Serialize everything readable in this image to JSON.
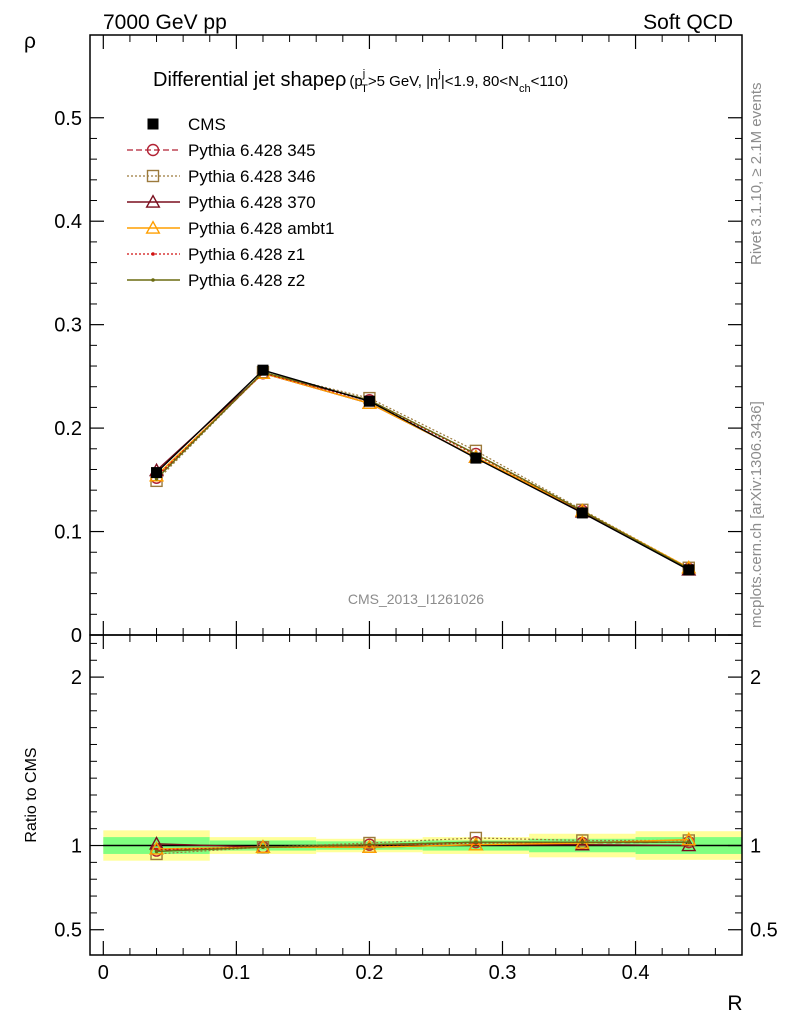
{
  "header": {
    "left": "7000 GeV pp",
    "right": "Soft QCD"
  },
  "side_labels": {
    "rivet": "Rivet 3.1.10, ≥ 2.1M events",
    "mcplots": "mcplots.cern.ch [arXiv:1306.3436]"
  },
  "watermark": "CMS_2013_I1261026",
  "colors": {
    "cms": "#000000",
    "p345": "#b22234",
    "p346": "#9c7a3c",
    "p370": "#7a0f1e",
    "ambt1": "#ff9f00",
    "z1": "#d01010",
    "z2": "#6b6b10",
    "band_inner": "#80ff80",
    "band_outer": "#ffff99"
  },
  "chart_data": [
    {
      "type": "line",
      "title": "Differential jet shape ρ",
      "title_parts": {
        "main": "Differential jet shape",
        "rho": "ρ",
        "open": "(p",
        "pt_sup": "j",
        "pt_sub": "T",
        "cut1": ">5 GeV, |η",
        "eta_sup": "j",
        "cut2": "|<1.9, 80<N",
        "nch_sub": "ch",
        "cut3": "<110)"
      },
      "ylabel": "ρ",
      "xlim": [
        -0.01,
        0.48
      ],
      "ylim": [
        0,
        0.58
      ],
      "yticks": [
        0,
        0.1,
        0.2,
        0.3,
        0.4,
        0.5
      ],
      "ytick_labels": [
        "0",
        "0.1",
        "0.2",
        "0.3",
        "0.4",
        "0.5"
      ],
      "legend_position": "top-left",
      "x": [
        0.04,
        0.12,
        0.2,
        0.28,
        0.36,
        0.44
      ],
      "series": [
        {
          "name": "CMS",
          "key": "cms",
          "values": [
            0.157,
            0.256,
            0.226,
            0.171,
            0.118,
            0.063
          ]
        },
        {
          "name": "Pythia 6.428 345",
          "key": "p345",
          "values": [
            0.152,
            0.253,
            0.227,
            0.175,
            0.12,
            0.064
          ]
        },
        {
          "name": "Pythia 6.428 346",
          "key": "p346",
          "values": [
            0.149,
            0.254,
            0.229,
            0.178,
            0.121,
            0.065
          ]
        },
        {
          "name": "Pythia 6.428 370",
          "key": "p370",
          "values": [
            0.159,
            0.253,
            0.224,
            0.172,
            0.119,
            0.063
          ]
        },
        {
          "name": "Pythia 6.428 ambt1",
          "key": "ambt1",
          "values": [
            0.154,
            0.253,
            0.224,
            0.172,
            0.12,
            0.065
          ]
        },
        {
          "name": "Pythia 6.428 z1",
          "key": "z1",
          "values": [
            0.153,
            0.253,
            0.226,
            0.174,
            0.12,
            0.064
          ]
        },
        {
          "name": "Pythia 6.428 z2",
          "key": "z2",
          "values": [
            0.151,
            0.254,
            0.227,
            0.175,
            0.12,
            0.064
          ]
        }
      ]
    },
    {
      "type": "line",
      "ylabel": "Ratio to CMS",
      "xlabel": "R",
      "xlim": [
        -0.01,
        0.48
      ],
      "ylim": [
        0.35,
        2.25
      ],
      "yticks": [
        0.5,
        1,
        2
      ],
      "ytick_labels": [
        "0.5",
        "1",
        "2"
      ],
      "xticks": [
        0,
        0.1,
        0.2,
        0.3,
        0.4
      ],
      "xtick_labels": [
        "0",
        "0.1",
        "0.2",
        "0.3",
        "0.4"
      ],
      "band_edges": [
        0,
        0.08,
        0.16,
        0.24,
        0.32,
        0.4,
        0.48
      ],
      "band_inner": [
        0.05,
        0.03,
        0.025,
        0.03,
        0.04,
        0.05
      ],
      "band_outer": [
        0.09,
        0.05,
        0.04,
        0.05,
        0.07,
        0.085
      ],
      "x": [
        0.04,
        0.12,
        0.2,
        0.28,
        0.36,
        0.44
      ],
      "series": [
        {
          "name": "Pythia 6.428 345",
          "key": "p345",
          "values": [
            0.97,
            0.99,
            1.005,
            1.02,
            1.015,
            1.02
          ]
        },
        {
          "name": "Pythia 6.428 346",
          "key": "p346",
          "values": [
            0.95,
            0.99,
            1.015,
            1.045,
            1.03,
            1.03
          ]
        },
        {
          "name": "Pythia 6.428 370",
          "key": "p370",
          "values": [
            1.01,
            0.99,
            0.99,
            1.005,
            1.005,
            1.0
          ]
        },
        {
          "name": "Pythia 6.428 ambt1",
          "key": "ambt1",
          "values": [
            0.98,
            0.99,
            0.99,
            1.005,
            1.015,
            1.035
          ]
        },
        {
          "name": "Pythia 6.428 z1",
          "key": "z1",
          "values": [
            0.975,
            0.99,
            1.0,
            1.015,
            1.02,
            1.02
          ]
        },
        {
          "name": "Pythia 6.428 z2",
          "key": "z2",
          "values": [
            0.965,
            0.99,
            1.005,
            1.02,
            1.02,
            1.02
          ]
        }
      ]
    }
  ]
}
